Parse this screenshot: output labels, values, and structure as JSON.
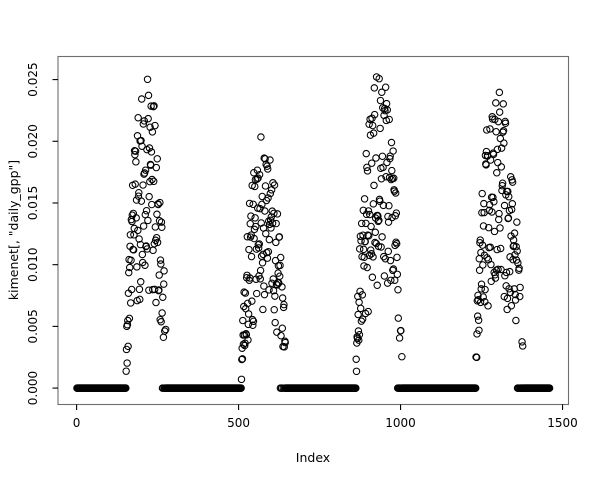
{
  "figure": {
    "background": "#ffffff",
    "box_color": "#6e6e6e",
    "tick_color": "#000000",
    "text_color": "#000000"
  },
  "chart_data": {
    "type": "scatter",
    "title": "",
    "xlabel": "Index",
    "ylabel": "kimenet[, \"daily_gpp\"]",
    "legend": null,
    "grid": false,
    "marker": "open-circle",
    "marker_color": "#000000",
    "marker_radius_px": 3.2,
    "n_points": 1460,
    "xlim": [
      -57.4,
      1518.4
    ],
    "ylim": [
      -0.00133,
      0.02687
    ],
    "x_ticks": [
      {
        "value": 0,
        "label": "0"
      },
      {
        "value": 500,
        "label": "500"
      },
      {
        "value": 1000,
        "label": "1000"
      },
      {
        "value": 1500,
        "label": "1500"
      }
    ],
    "y_ticks": [
      {
        "value": 0.0,
        "label": "0.000"
      },
      {
        "value": 0.005,
        "label": "0.005"
      },
      {
        "value": 0.01,
        "label": "0.010"
      },
      {
        "value": 0.015,
        "label": "0.015"
      },
      {
        "value": 0.02,
        "label": "0.020"
      },
      {
        "value": 0.025,
        "label": "0.025"
      }
    ],
    "baseline_value": 0.0,
    "series_description": "Daily GPP: value is exactly 0 outside growing seasons (dense black baseline of overlapping circles); within each season values scatter between ~28% and 100% of a steep-edged seasonal envelope.",
    "seasons": [
      {
        "start": 152,
        "end": 278,
        "peak": 215,
        "max": 0.0257
      },
      {
        "start": 508,
        "end": 648,
        "peak": 572,
        "max": 0.0206
      },
      {
        "start": 862,
        "end": 1008,
        "peak": 935,
        "max": 0.0257
      },
      {
        "start": 1232,
        "end": 1380,
        "peak": 1292,
        "max": 0.0246
      }
    ],
    "noise": {
      "seed": 20240507,
      "floor": 0.28,
      "upper_bias_exponent": 0.8,
      "envelope_exponent": 0.6,
      "tail_zero_start": 0.85,
      "tail_zero_slope": 5
    }
  }
}
